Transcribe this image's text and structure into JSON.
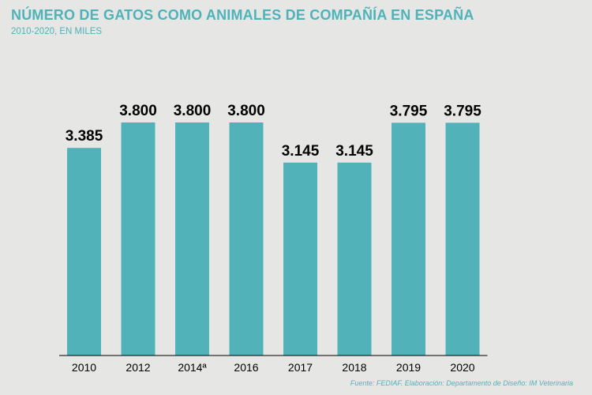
{
  "title": "NÚMERO DE GATOS COMO ANIMALES DE COMPAÑÍA EN ESPAÑA",
  "subtitle": "2010-2020, EN MILES",
  "source": "Fuente: FEDIAF. Elaboración: Departamento de Diseño: IM Veterinaria",
  "colors": {
    "bar": "#51b2b9",
    "accent": "#4db3b9",
    "background": "#e6e6e5",
    "axis": "#000000"
  },
  "chart_data": {
    "type": "bar",
    "categories": [
      "2010",
      "2012",
      "2014ª",
      "2016",
      "2017",
      "2018",
      "2019",
      "2020"
    ],
    "values": [
      3385,
      3800,
      3800,
      3800,
      3145,
      3145,
      3795,
      3795
    ],
    "value_labels": [
      "3.385",
      "3.800",
      "3.800",
      "3.800",
      "3.145",
      "3.145",
      "3.795",
      "3.795"
    ],
    "title": "NÚMERO DE GATOS COMO ANIMALES DE COMPAÑÍA EN ESPAÑA",
    "xlabel": "",
    "ylabel": "",
    "ylim": [
      0,
      3800
    ],
    "grid": false,
    "legend": "none"
  }
}
